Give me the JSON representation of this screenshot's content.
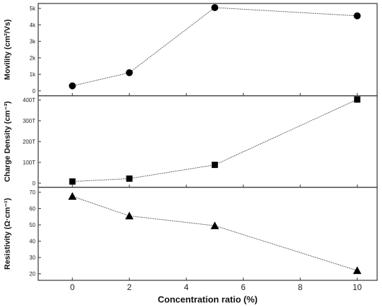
{
  "chart_data": [
    {
      "type": "line",
      "marker": "circle",
      "ylabel": "Movility (cm²/Vs)",
      "x": [
        0,
        2,
        5,
        10
      ],
      "values": [
        300,
        1100,
        5050,
        4550
      ],
      "ylim": [
        -300,
        5300
      ],
      "yticks": [
        0,
        1000,
        2000,
        3000,
        4000,
        5000
      ],
      "ytick_labels": [
        "0",
        "1k",
        "2k",
        "3k",
        "4k",
        "5k"
      ]
    },
    {
      "type": "line",
      "marker": "square",
      "ylabel": "Charge Density (cm⁻³)",
      "x": [
        0,
        2,
        5,
        10
      ],
      "values": [
        8,
        22,
        88,
        402
      ],
      "ylim": [
        -20,
        420
      ],
      "yticks": [
        0,
        100,
        200,
        300,
        400
      ],
      "ytick_labels": [
        "0",
        "100T",
        "200T",
        "300T",
        "400T"
      ]
    },
    {
      "type": "line",
      "marker": "triangle",
      "ylabel": "Resistivity (Ω·cm⁻¹)",
      "x": [
        0,
        2,
        5,
        10
      ],
      "values": [
        67.5,
        55.5,
        49.5,
        22
      ],
      "ylim": [
        16,
        73
      ],
      "yticks": [
        20,
        30,
        40,
        50,
        60,
        70
      ],
      "ytick_labels": [
        "20",
        "30",
        "40",
        "50",
        "60",
        "70"
      ]
    }
  ],
  "shared_x": {
    "xlabel": "Concentration ratio (%)",
    "ticks": [
      0,
      2,
      4,
      6,
      8,
      10
    ],
    "tick_labels": [
      "0",
      "2",
      "4",
      "6",
      "8",
      "10"
    ],
    "xlim": [
      -1.2,
      10.7
    ]
  },
  "style": {
    "line_color": "#333333",
    "marker_color": "#000000",
    "frame_color": "#333333"
  }
}
